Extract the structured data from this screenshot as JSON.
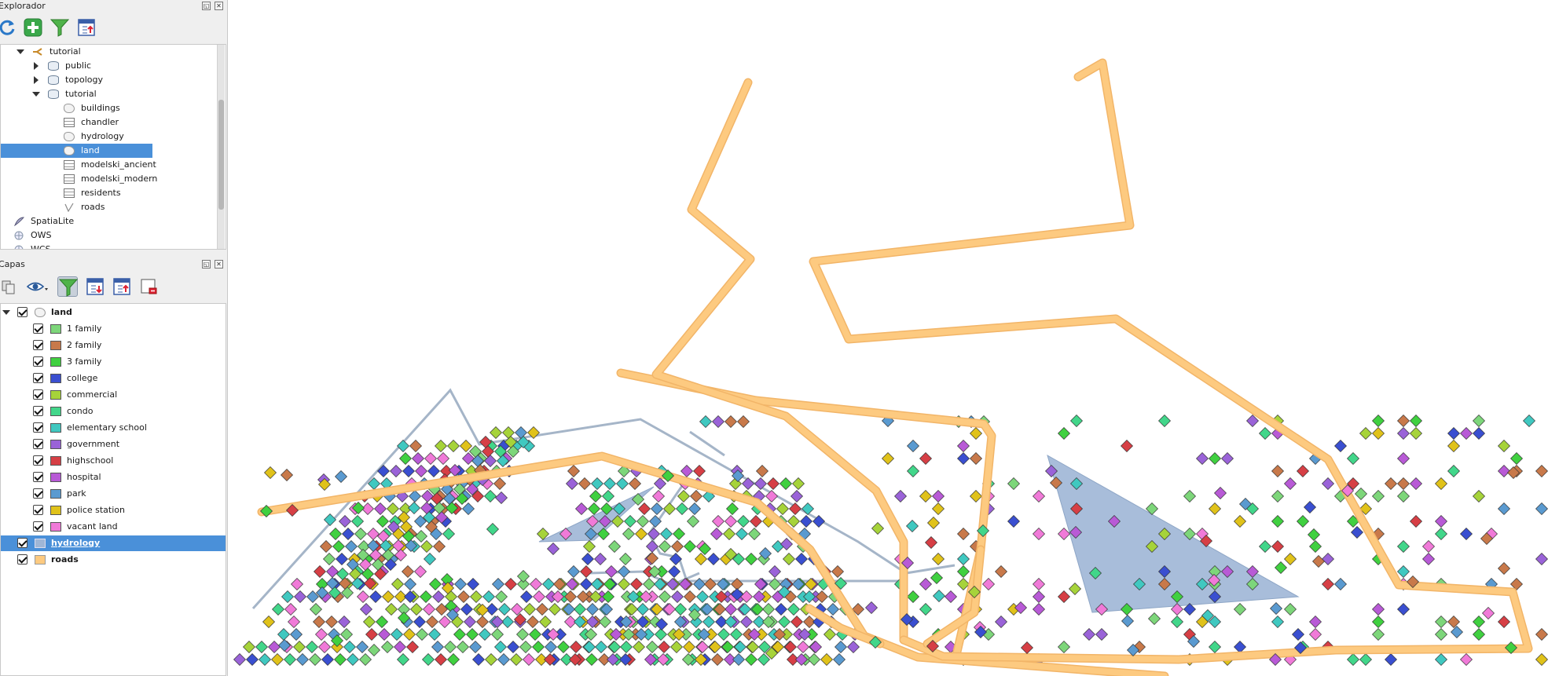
{
  "browser_panel": {
    "title": "Explorador",
    "toolbar": [
      "refresh-icon",
      "add-icon",
      "filter-icon",
      "collapse-icon"
    ],
    "tree": [
      {
        "label": "tutorial",
        "kind": "connection",
        "depth": 1,
        "expanded": true
      },
      {
        "label": "public",
        "kind": "schema",
        "depth": 2,
        "expanded": false
      },
      {
        "label": "topology",
        "kind": "schema",
        "depth": 2,
        "expanded": false
      },
      {
        "label": "tutorial",
        "kind": "schema",
        "depth": 2,
        "expanded": true
      },
      {
        "label": "buildings",
        "kind": "polygon",
        "depth": 3
      },
      {
        "label": "chandler",
        "kind": "table",
        "depth": 3
      },
      {
        "label": "hydrology",
        "kind": "polygon",
        "depth": 3
      },
      {
        "label": "land",
        "kind": "polygon",
        "depth": 3,
        "selected": true
      },
      {
        "label": "modelski_ancient",
        "kind": "table",
        "depth": 3
      },
      {
        "label": "modelski_modern",
        "kind": "table",
        "depth": 3
      },
      {
        "label": "residents",
        "kind": "table",
        "depth": 3
      },
      {
        "label": "roads",
        "kind": "line",
        "depth": 3
      },
      {
        "label": "SpatiaLite",
        "kind": "spatialite",
        "depth": 0
      },
      {
        "label": "OWS",
        "kind": "globe",
        "depth": 0
      },
      {
        "label": "WCS",
        "kind": "globe",
        "depth": 0
      }
    ]
  },
  "layers_panel": {
    "title": "Capas",
    "layers": [
      {
        "name": "land",
        "checked": true,
        "expanded": true,
        "classes": [
          {
            "label": "1 family",
            "color": "#7dd67a"
          },
          {
            "label": "2 family",
            "color": "#c8794a"
          },
          {
            "label": "3 family",
            "color": "#40d040"
          },
          {
            "label": "college",
            "color": "#3a4fd0"
          },
          {
            "label": "commercial",
            "color": "#a6d33a"
          },
          {
            "label": "condo",
            "color": "#42d68a"
          },
          {
            "label": "elementary school",
            "color": "#40c8c0"
          },
          {
            "label": "government",
            "color": "#9a63d8"
          },
          {
            "label": "highschool",
            "color": "#d63f45"
          },
          {
            "label": "hospital",
            "color": "#b85ad6"
          },
          {
            "label": "park",
            "color": "#5a9ad0"
          },
          {
            "label": "police station",
            "color": "#e0c21a"
          },
          {
            "label": "vacant land",
            "color": "#f07ad8"
          }
        ]
      },
      {
        "name": "hydrology",
        "checked": true,
        "selected": true,
        "color": "#9fb6d6"
      },
      {
        "name": "roads",
        "checked": true,
        "color": "#fdca80"
      }
    ]
  },
  "map_colors": {
    "road": "#fdca80",
    "road_outline": "#f2b568",
    "hydro_line": "#a5b5c8",
    "hydro_fill": "#9fb6d6"
  }
}
